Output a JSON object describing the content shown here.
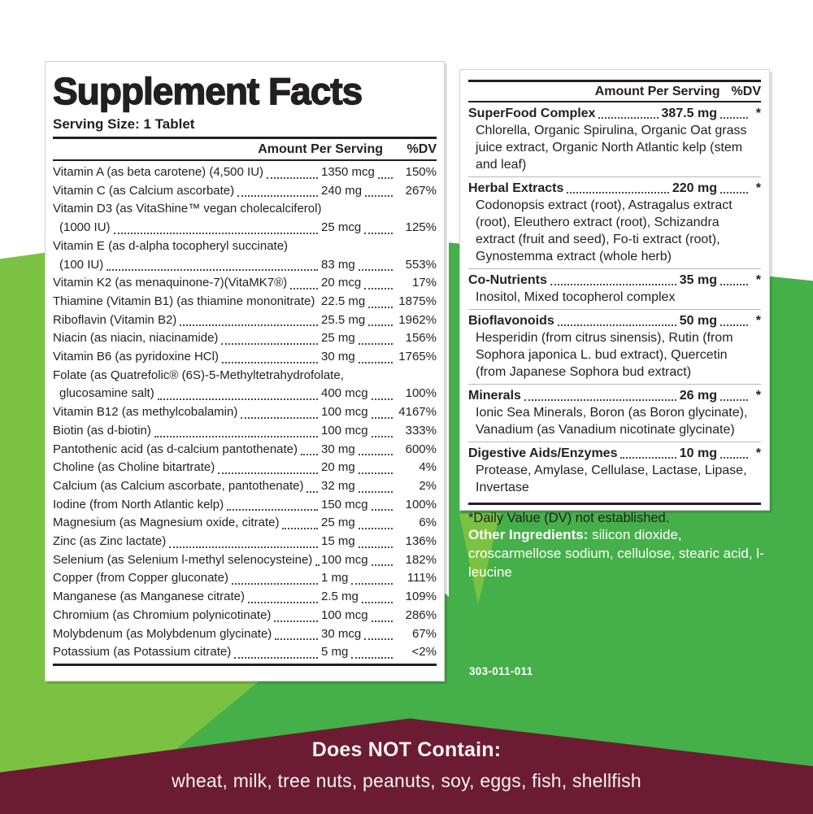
{
  "left_panel": {
    "title": "Supplement Facts",
    "serving_size": "Serving Size: 1 Tablet",
    "col_amount": "Amount Per Serving",
    "col_dv": "%DV",
    "rows": [
      {
        "label": "Vitamin A (as beta carotene) (4,500 IU)",
        "amount": "1350 mcg",
        "dv": "150%"
      },
      {
        "label": "Vitamin C (as Calcium ascorbate)",
        "amount": "240 mg",
        "dv": "267%"
      },
      {
        "label": "Vitamin D3  (as VitaShine™ vegan cholecalciferol)",
        "label2": "(1000 IU)",
        "amount": "25 mcg",
        "dv": "125%"
      },
      {
        "label": "Vitamin E (as d-alpha tocopheryl succinate)",
        "label2": "(100 IU)",
        "amount": "83 mg",
        "dv": "553%"
      },
      {
        "label": "Vitamin K2 (as menaquinone-7)(VitaMK7®)",
        "amount": "20 mcg",
        "dv": "17%"
      },
      {
        "label": "Thiamine (Vitamin B1) (as thiamine mononitrate)",
        "amount": "22.5 mg",
        "dv": "1875%"
      },
      {
        "label": "Riboflavin (Vitamin B2)",
        "amount": "25.5 mg",
        "dv": "1962%"
      },
      {
        "label": "Niacin (as niacin, niacinamide)",
        "amount": "25 mg",
        "dv": "156%"
      },
      {
        "label": "Vitamin B6 (as pyridoxine HCl)",
        "amount": "30 mg",
        "dv": "1765%"
      },
      {
        "label": "Folate (as Quatrefolic® (6S)-5-Methyltetrahydrofolate,",
        "label2": "glucosamine salt)",
        "amount": "400 mcg",
        "dv": "100%"
      },
      {
        "label": "Vitamin B12 (as methylcobalamin)",
        "amount": "100 mcg",
        "dv": "4167%"
      },
      {
        "label": "Biotin (as d-biotin)",
        "amount": "100 mcg",
        "dv": "333%"
      },
      {
        "label": "Pantothenic acid (as d-calcium pantothenate)",
        "amount": "30 mg",
        "dv": "600%"
      },
      {
        "label": "Choline (as Choline bitartrate)",
        "amount": "20 mg",
        "dv": "4%"
      },
      {
        "label": "Calcium (as Calcium ascorbate, pantothenate)",
        "amount": "32 mg",
        "dv": "2%"
      },
      {
        "label": "Iodine (from North Atlantic kelp)",
        "amount": "150 mcg",
        "dv": "100%"
      },
      {
        "label": "Magnesium (as Magnesium oxide, citrate)",
        "amount": "25 mg",
        "dv": "6%"
      },
      {
        "label": "Zinc (as Zinc lactate)",
        "amount": "15 mg",
        "dv": "136%"
      },
      {
        "label": "Selenium (as Selenium l-methyl selenocysteine)",
        "amount": "100 mcg",
        "dv": "182%"
      },
      {
        "label": "Copper (from Copper gluconate)",
        "amount": "1 mg",
        "dv": "111%"
      },
      {
        "label": "Manganese (as Manganese citrate)",
        "amount": "2.5 mg",
        "dv": "109%"
      },
      {
        "label": "Chromium (as Chromium polynicotinate)",
        "amount": "100 mcg",
        "dv": "286%"
      },
      {
        "label": "Molybdenum (as Molybdenum glycinate)",
        "amount": "30 mcg",
        "dv": "67%"
      },
      {
        "label": "Potassium (as Potassium citrate)",
        "amount": "5 mg",
        "dv": "<2%"
      }
    ]
  },
  "right_panel": {
    "col_amount": "Amount Per Serving",
    "col_dv": "%DV",
    "sections": [
      {
        "name": "SuperFood Complex",
        "amount": "387.5 mg",
        "dv": "*",
        "sub": "Chlorella, Organic Spirulina, Organic Oat grass juice extract, Organic North Atlantic kelp (stem and leaf)"
      },
      {
        "name": "Herbal Extracts",
        "amount": "220 mg",
        "dv": "*",
        "sub": "Codonopsis extract (root), Astragalus extract (root), Eleuthero extract (root), Schizandra extract (fruit and seed), Fo-ti extract (root), Gynostemma extract (whole herb)"
      },
      {
        "name": "Co-Nutrients",
        "amount": "35 mg",
        "dv": "*",
        "sub": "Inositol, Mixed tocopherol complex"
      },
      {
        "name": "Bioflavonoids",
        "amount": "50 mg",
        "dv": "*",
        "sub": "Hesperidin (from citrus sinensis), Rutin (from Sophora japonica L. bud extract), Quercetin (from Japanese Sophora bud extract)"
      },
      {
        "name": "Minerals",
        "amount": "26 mg",
        "dv": "*",
        "sub": "Ionic Sea Minerals, Boron (as Boron glycinate), Vanadium (as Vanadium nicotinate glycinate)"
      },
      {
        "name": "Digestive Aids/Enzymes",
        "amount": "10 mg",
        "dv": "*",
        "sub": "Protease, Amylase, Cellulase, Lactase, Lipase, Invertase"
      }
    ],
    "footnote": "*Daily Value (DV) not established."
  },
  "other_ingredients": {
    "label": "Other Ingredients:",
    "text": " silicon dioxide, croscarmellose sodium, cellulose, stearic acid, l-leucine"
  },
  "product_code": "303-011-011",
  "bottom_banner": {
    "title": "Does NOT Contain:",
    "items": "wheat, milk, tree nuts, peanuts, soy, eggs, fish, shellfish"
  },
  "colors": {
    "green_light": "#7cc242",
    "green_dark": "#45b049",
    "maroon": "#6b1c33",
    "text_black": "#231f20"
  }
}
